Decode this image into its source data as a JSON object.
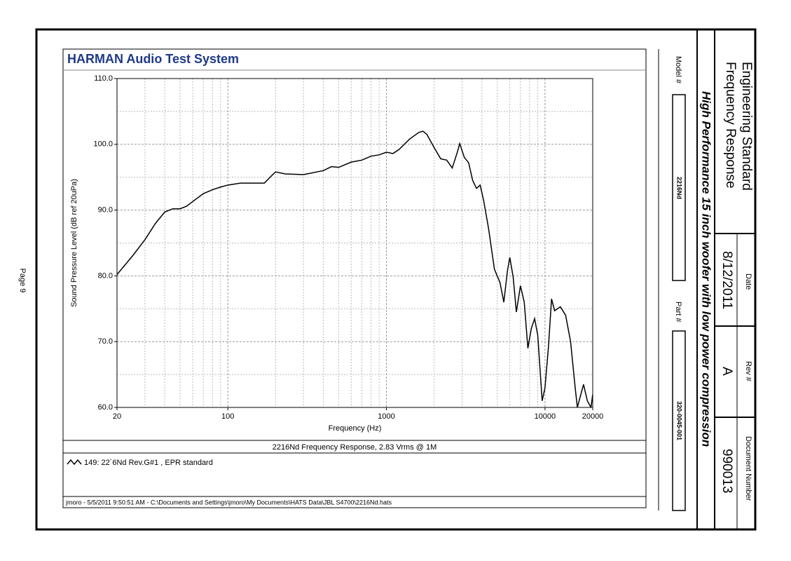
{
  "page_label": "Page 9",
  "panel_title": "HARMAN Audio Test System",
  "footer": "jmoro - 5/5/2011 9:50:51 AM - C:\\Documents and Settings\\jmoro\\My Documents\\HATS Data\\JBL S4700\\2216Nd.hats",
  "model_label": "Model #",
  "model": "2216Nd",
  "part_label": "Part #",
  "part": "320-0045-001",
  "title_block": {
    "title": "Engineering Standard",
    "subtitle": "Frequency Response",
    "description": "High Performance 15 inch woofer with low power compression",
    "date_label": "Date",
    "date": "8/12/2011",
    "rev_label": "Rev #",
    "rev": "A",
    "doc_label": "Document Number",
    "doc": "990013"
  },
  "chart_data": {
    "type": "line",
    "caption": "2216Nd Frequency Response, 2.83 Vrms @ 1M",
    "x_label": "Frequency (Hz)",
    "y_label": "Sound Pressure Level (dB ref 20uPa)",
    "xscale": "log",
    "xlim": [
      20,
      20000
    ],
    "xticks": [
      20,
      100,
      1000,
      10000,
      20000
    ],
    "xminor_ticks": [
      30,
      40,
      50,
      60,
      70,
      80,
      90,
      200,
      300,
      400,
      500,
      600,
      700,
      800,
      900,
      2000,
      3000,
      4000,
      5000,
      6000,
      7000,
      8000,
      9000
    ],
    "ylim": [
      60,
      110
    ],
    "yticks": [
      {
        "value": 60,
        "label": "60.0"
      },
      {
        "value": 70,
        "label": "70.0"
      },
      {
        "value": 80,
        "label": "80.0"
      },
      {
        "value": 90,
        "label": "90.0"
      },
      {
        "value": 100,
        "label": "100.0"
      },
      {
        "value": 110,
        "label": "110.0"
      }
    ],
    "yminor_ticks": [
      65,
      75,
      85,
      95,
      105
    ],
    "grid": true,
    "x": [
      20,
      25,
      30,
      35,
      40,
      45,
      50,
      55,
      60,
      70,
      80,
      90,
      100,
      120,
      150,
      170,
      190,
      200,
      230,
      300,
      400,
      450,
      500,
      600,
      700,
      800,
      900,
      1000,
      1100,
      1200,
      1400,
      1600,
      1700,
      1800,
      2000,
      2200,
      2400,
      2600,
      2800,
      2900,
      3100,
      3300,
      3500,
      3700,
      3900,
      4100,
      4400,
      4800,
      5200,
      5500,
      5800,
      6000,
      6300,
      6600,
      7000,
      7400,
      7800,
      8200,
      8600,
      9000,
      9600,
      10000,
      10500,
      11000,
      11500,
      12500,
      13500,
      14500,
      15500,
      16000,
      17500,
      18500,
      19500,
      20000
    ],
    "series": [
      {
        "name": "149: 22´6Nd Rev.G#1 , EPR standard",
        "color": "#000000",
        "values": [
          80.2,
          83,
          85.5,
          88,
          89.7,
          90.2,
          90.2,
          90.6,
          91.3,
          92.5,
          93.1,
          93.5,
          93.8,
          94.1,
          94.1,
          94.1,
          95.3,
          95.8,
          95.5,
          95.4,
          96.0,
          96.6,
          96.5,
          97.3,
          97.6,
          98.2,
          98.4,
          98.8,
          98.6,
          99.2,
          100.8,
          101.8,
          102.0,
          101.5,
          99.5,
          97.8,
          97.6,
          96.4,
          98.8,
          100.1,
          98.0,
          97.2,
          94.5,
          93.3,
          93.8,
          91.5,
          87.3,
          81,
          79,
          76,
          80.8,
          82.8,
          79.8,
          74.5,
          78.5,
          76,
          69,
          72,
          73.5,
          71,
          61,
          63,
          69,
          76.5,
          74.7,
          75.3,
          74,
          70,
          63,
          60,
          63.5,
          61,
          60,
          62
        ]
      }
    ]
  }
}
